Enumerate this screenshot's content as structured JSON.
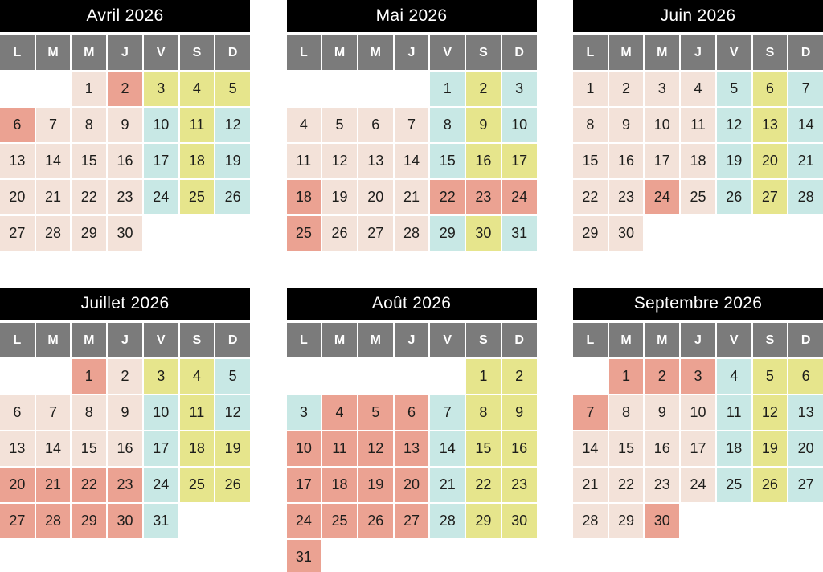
{
  "day_headers": [
    "L",
    "M",
    "M",
    "J",
    "V",
    "S",
    "D"
  ],
  "colors": {
    "title_bg": "#000000",
    "title_text": "#ffffff",
    "weekday_bg": "#7b7b7b",
    "weekday_text": "#ffffff",
    "day_text": "#1d1d1b",
    "beige": "#f3e2d9",
    "salmon": "#eba292",
    "yellow": "#e6e58c",
    "cyan": "#c8e8e5"
  },
  "legend": {
    "p": "beige",
    "r": "salmon",
    "y": "yellow",
    "c": "cyan"
  },
  "months": [
    {
      "name": "Avril 2026",
      "weeks": [
        [
          null,
          null,
          [
            1,
            "p"
          ],
          [
            2,
            "r"
          ],
          [
            3,
            "y"
          ],
          [
            4,
            "y"
          ],
          [
            5,
            "y"
          ]
        ],
        [
          [
            6,
            "r"
          ],
          [
            7,
            "p"
          ],
          [
            8,
            "p"
          ],
          [
            9,
            "p"
          ],
          [
            10,
            "c"
          ],
          [
            11,
            "y"
          ],
          [
            12,
            "c"
          ]
        ],
        [
          [
            13,
            "p"
          ],
          [
            14,
            "p"
          ],
          [
            15,
            "p"
          ],
          [
            16,
            "p"
          ],
          [
            17,
            "c"
          ],
          [
            18,
            "y"
          ],
          [
            19,
            "c"
          ]
        ],
        [
          [
            20,
            "p"
          ],
          [
            21,
            "p"
          ],
          [
            22,
            "p"
          ],
          [
            23,
            "p"
          ],
          [
            24,
            "c"
          ],
          [
            25,
            "y"
          ],
          [
            26,
            "c"
          ]
        ],
        [
          [
            27,
            "p"
          ],
          [
            28,
            "p"
          ],
          [
            29,
            "p"
          ],
          [
            30,
            "p"
          ],
          null,
          null,
          null
        ]
      ]
    },
    {
      "name": "Mai 2026",
      "weeks": [
        [
          null,
          null,
          null,
          null,
          [
            1,
            "c"
          ],
          [
            2,
            "y"
          ],
          [
            3,
            "c"
          ]
        ],
        [
          [
            4,
            "p"
          ],
          [
            5,
            "p"
          ],
          [
            6,
            "p"
          ],
          [
            7,
            "p"
          ],
          [
            8,
            "c"
          ],
          [
            9,
            "y"
          ],
          [
            10,
            "c"
          ]
        ],
        [
          [
            11,
            "p"
          ],
          [
            12,
            "p"
          ],
          [
            13,
            "p"
          ],
          [
            14,
            "p"
          ],
          [
            15,
            "c"
          ],
          [
            16,
            "y"
          ],
          [
            17,
            "y"
          ]
        ],
        [
          [
            18,
            "r"
          ],
          [
            19,
            "p"
          ],
          [
            20,
            "p"
          ],
          [
            21,
            "p"
          ],
          [
            22,
            "r"
          ],
          [
            23,
            "r"
          ],
          [
            24,
            "r"
          ]
        ],
        [
          [
            25,
            "r"
          ],
          [
            26,
            "p"
          ],
          [
            27,
            "p"
          ],
          [
            28,
            "p"
          ],
          [
            29,
            "c"
          ],
          [
            30,
            "y"
          ],
          [
            31,
            "c"
          ]
        ]
      ]
    },
    {
      "name": "Juin 2026",
      "weeks": [
        [
          [
            1,
            "p"
          ],
          [
            2,
            "p"
          ],
          [
            3,
            "p"
          ],
          [
            4,
            "p"
          ],
          [
            5,
            "c"
          ],
          [
            6,
            "y"
          ],
          [
            7,
            "c"
          ]
        ],
        [
          [
            8,
            "p"
          ],
          [
            9,
            "p"
          ],
          [
            10,
            "p"
          ],
          [
            11,
            "p"
          ],
          [
            12,
            "c"
          ],
          [
            13,
            "y"
          ],
          [
            14,
            "c"
          ]
        ],
        [
          [
            15,
            "p"
          ],
          [
            16,
            "p"
          ],
          [
            17,
            "p"
          ],
          [
            18,
            "p"
          ],
          [
            19,
            "c"
          ],
          [
            20,
            "y"
          ],
          [
            21,
            "c"
          ]
        ],
        [
          [
            22,
            "p"
          ],
          [
            23,
            "p"
          ],
          [
            24,
            "r"
          ],
          [
            25,
            "p"
          ],
          [
            26,
            "c"
          ],
          [
            27,
            "y"
          ],
          [
            28,
            "c"
          ]
        ],
        [
          [
            29,
            "p"
          ],
          [
            30,
            "p"
          ],
          null,
          null,
          null,
          null,
          null
        ]
      ]
    },
    {
      "name": "Juillet 2026",
      "weeks": [
        [
          null,
          null,
          [
            1,
            "r"
          ],
          [
            2,
            "p"
          ],
          [
            3,
            "y"
          ],
          [
            4,
            "y"
          ],
          [
            5,
            "c"
          ]
        ],
        [
          [
            6,
            "p"
          ],
          [
            7,
            "p"
          ],
          [
            8,
            "p"
          ],
          [
            9,
            "p"
          ],
          [
            10,
            "c"
          ],
          [
            11,
            "y"
          ],
          [
            12,
            "c"
          ]
        ],
        [
          [
            13,
            "p"
          ],
          [
            14,
            "p"
          ],
          [
            15,
            "p"
          ],
          [
            16,
            "p"
          ],
          [
            17,
            "c"
          ],
          [
            18,
            "y"
          ],
          [
            19,
            "y"
          ]
        ],
        [
          [
            20,
            "r"
          ],
          [
            21,
            "r"
          ],
          [
            22,
            "r"
          ],
          [
            23,
            "r"
          ],
          [
            24,
            "c"
          ],
          [
            25,
            "y"
          ],
          [
            26,
            "y"
          ]
        ],
        [
          [
            27,
            "r"
          ],
          [
            28,
            "r"
          ],
          [
            29,
            "r"
          ],
          [
            30,
            "r"
          ],
          [
            31,
            "c"
          ],
          null,
          null
        ]
      ]
    },
    {
      "name": "Août 2026",
      "weeks": [
        [
          null,
          null,
          null,
          null,
          null,
          [
            1,
            "y"
          ],
          [
            2,
            "y"
          ]
        ],
        [
          [
            3,
            "c"
          ],
          [
            4,
            "r"
          ],
          [
            5,
            "r"
          ],
          [
            6,
            "r"
          ],
          [
            7,
            "c"
          ],
          [
            8,
            "y"
          ],
          [
            9,
            "y"
          ]
        ],
        [
          [
            10,
            "r"
          ],
          [
            11,
            "r"
          ],
          [
            12,
            "r"
          ],
          [
            13,
            "r"
          ],
          [
            14,
            "c"
          ],
          [
            15,
            "y"
          ],
          [
            16,
            "y"
          ]
        ],
        [
          [
            17,
            "r"
          ],
          [
            18,
            "r"
          ],
          [
            19,
            "r"
          ],
          [
            20,
            "r"
          ],
          [
            21,
            "c"
          ],
          [
            22,
            "y"
          ],
          [
            23,
            "y"
          ]
        ],
        [
          [
            24,
            "r"
          ],
          [
            25,
            "r"
          ],
          [
            26,
            "r"
          ],
          [
            27,
            "r"
          ],
          [
            28,
            "c"
          ],
          [
            29,
            "y"
          ],
          [
            30,
            "y"
          ]
        ],
        [
          [
            31,
            "r"
          ],
          null,
          null,
          null,
          null,
          null,
          null
        ]
      ]
    },
    {
      "name": "Septembre 2026",
      "weeks": [
        [
          null,
          [
            1,
            "r"
          ],
          [
            2,
            "r"
          ],
          [
            3,
            "r"
          ],
          [
            4,
            "c"
          ],
          [
            5,
            "y"
          ],
          [
            6,
            "y"
          ]
        ],
        [
          [
            7,
            "r"
          ],
          [
            8,
            "p"
          ],
          [
            9,
            "p"
          ],
          [
            10,
            "p"
          ],
          [
            11,
            "c"
          ],
          [
            12,
            "y"
          ],
          [
            13,
            "c"
          ]
        ],
        [
          [
            14,
            "p"
          ],
          [
            15,
            "p"
          ],
          [
            16,
            "p"
          ],
          [
            17,
            "p"
          ],
          [
            18,
            "c"
          ],
          [
            19,
            "y"
          ],
          [
            20,
            "c"
          ]
        ],
        [
          [
            21,
            "p"
          ],
          [
            22,
            "p"
          ],
          [
            23,
            "p"
          ],
          [
            24,
            "p"
          ],
          [
            25,
            "c"
          ],
          [
            26,
            "y"
          ],
          [
            27,
            "c"
          ]
        ],
        [
          [
            28,
            "p"
          ],
          [
            29,
            "p"
          ],
          [
            30,
            "r"
          ],
          null,
          null,
          null,
          null
        ]
      ]
    }
  ]
}
